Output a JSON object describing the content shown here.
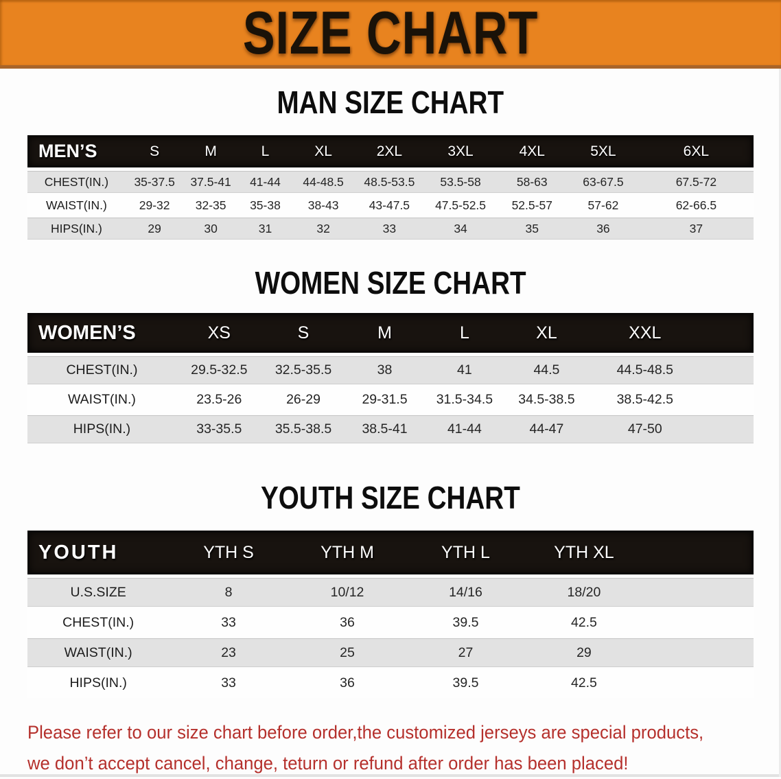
{
  "banner": {
    "title": "SIZE CHART",
    "bg_color": "#e8831f",
    "edge_color": "#a9652a",
    "text_color": "#1a1208"
  },
  "sections": [
    {
      "heading": "MAN SIZE CHART",
      "group_label": "MEN’S",
      "columns": [
        "S",
        "M",
        "L",
        "XL",
        "2XL",
        "3XL",
        "4XL",
        "5XL",
        "6XL"
      ],
      "rows": [
        {
          "label": "CHEST(IN.)",
          "values": [
            "35-37.5",
            "37.5-41",
            "41-44",
            "44-48.5",
            "48.5-53.5",
            "53.5-58",
            "58-63",
            "63-67.5",
            "67.5-72"
          ]
        },
        {
          "label": "WAIST(IN.)",
          "values": [
            "29-32",
            "32-35",
            "35-38",
            "38-43",
            "43-47.5",
            "47.5-52.5",
            "52.5-57",
            "57-62",
            "62-66.5"
          ]
        },
        {
          "label": "HIPS(IN.)",
          "values": [
            "29",
            "30",
            "31",
            "32",
            "33",
            "34",
            "35",
            "36",
            "37"
          ]
        }
      ]
    },
    {
      "heading": "WOMEN SIZE CHART",
      "group_label": "WOMEN’S",
      "columns": [
        "XS",
        "S",
        "M",
        "L",
        "XL",
        "XXL"
      ],
      "rows": [
        {
          "label": "CHEST(IN.)",
          "values": [
            "29.5-32.5",
            "32.5-35.5",
            "38",
            "41",
            "44.5",
            "44.5-48.5"
          ]
        },
        {
          "label": "WAIST(IN.)",
          "values": [
            "23.5-26",
            "26-29",
            "29-31.5",
            "31.5-34.5",
            "34.5-38.5",
            "38.5-42.5"
          ]
        },
        {
          "label": "HIPS(IN.)",
          "values": [
            "33-35.5",
            "35.5-38.5",
            "38.5-41",
            "41-44",
            "44-47",
            "47-50"
          ]
        }
      ]
    },
    {
      "heading": "YOUTH SIZE CHART",
      "group_label": "YOUTH",
      "columns": [
        "YTH S",
        "YTH M",
        "YTH L",
        "YTH XL"
      ],
      "rows": [
        {
          "label": "U.S.SIZE",
          "values": [
            "8",
            "10/12",
            "14/16",
            "18/20"
          ]
        },
        {
          "label": "CHEST(IN.)",
          "values": [
            "33",
            "36",
            "39.5",
            "42.5"
          ]
        },
        {
          "label": "WAIST(IN.)",
          "values": [
            "23",
            "25",
            "27",
            "29"
          ]
        },
        {
          "label": "HIPS(IN.)",
          "values": [
            "33",
            "36",
            "39.5",
            "42.5"
          ]
        }
      ]
    }
  ],
  "disclaimer": {
    "line1": "Please refer to our size chart before order,the customized jerseys are special products,",
    "line2": "we don’t accept cancel, change, teturn or refund after order has been placed!",
    "color": "#b5302c"
  },
  "colors": {
    "table_header_bar": "#18130f",
    "row_stripe": "#e2e2e2",
    "table_text": "#252525"
  }
}
